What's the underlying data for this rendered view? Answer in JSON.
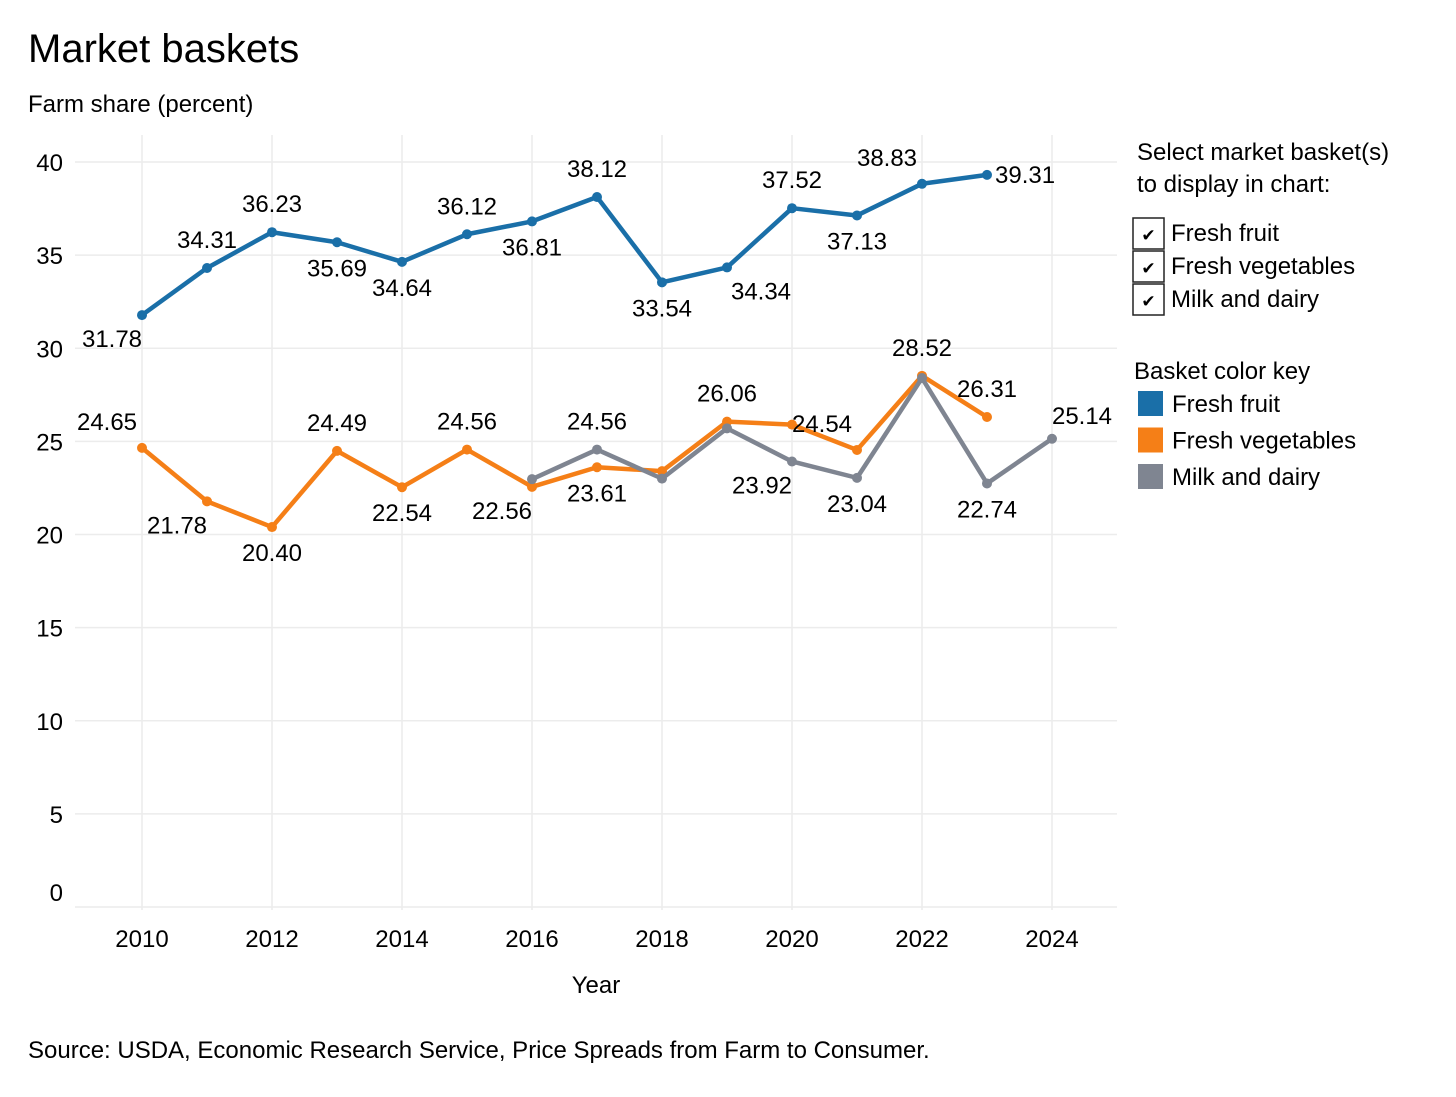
{
  "chart_data": {
    "type": "line",
    "title": "Market baskets",
    "ylabel": "Farm share (percent)",
    "xlabel": "Year",
    "ylim": [
      0,
      40
    ],
    "xlim": [
      2010,
      2024
    ],
    "yticks": [
      "0",
      "5",
      "10",
      "15",
      "20",
      "25",
      "30",
      "35",
      "40"
    ],
    "xticks": [
      "2010",
      "2012",
      "2014",
      "2016",
      "2018",
      "2020",
      "2022",
      "2024"
    ],
    "grid": true,
    "series": [
      {
        "name": "Fresh fruit",
        "color": "#1a6fa8",
        "points": [
          [
            2010,
            31.78,
            "31.78",
            "below-left"
          ],
          [
            2011,
            34.31,
            "34.31",
            "above"
          ],
          [
            2012,
            36.23,
            "36.23",
            "above"
          ],
          [
            2013,
            35.69,
            "35.69",
            "below"
          ],
          [
            2014,
            34.64,
            "34.64",
            "below"
          ],
          [
            2015,
            36.12,
            "36.12",
            "above"
          ],
          [
            2016,
            36.81,
            "36.81",
            "below"
          ],
          [
            2017,
            38.12,
            "38.12",
            "above"
          ],
          [
            2018,
            33.54,
            "33.54",
            "below"
          ],
          [
            2019,
            34.34,
            "34.34",
            "below-right"
          ],
          [
            2020,
            37.52,
            "37.52",
            "above"
          ],
          [
            2021,
            37.13,
            "37.13",
            "below"
          ],
          [
            2022,
            38.83,
            "38.83",
            "above-left"
          ],
          [
            2023,
            39.31,
            "39.31",
            "right"
          ]
        ]
      },
      {
        "name": "Fresh vegetables",
        "color": "#f57f17",
        "points": [
          [
            2010,
            24.65,
            "24.65",
            "above-left"
          ],
          [
            2011,
            21.78,
            "21.78",
            "below-left"
          ],
          [
            2012,
            20.4,
            "20.40",
            "below"
          ],
          [
            2013,
            24.49,
            "24.49",
            "above"
          ],
          [
            2014,
            22.54,
            "22.54",
            "below"
          ],
          [
            2015,
            24.56,
            "24.56",
            "above"
          ],
          [
            2016,
            22.56,
            "22.56",
            "below-left"
          ],
          [
            2017,
            23.61,
            "23.61",
            "below"
          ],
          [
            2018,
            23.4,
            "",
            ""
          ],
          [
            2019,
            26.06,
            "26.06",
            "above"
          ],
          [
            2020,
            25.9,
            "",
            ""
          ],
          [
            2021,
            24.54,
            "24.54",
            "above-left"
          ],
          [
            2022,
            28.52,
            "28.52",
            "above"
          ],
          [
            2023,
            26.31,
            "26.31",
            "above"
          ]
        ]
      },
      {
        "name": "Milk and dairy",
        "color": "#7f8591",
        "points": [
          [
            2016,
            22.97,
            "",
            ""
          ],
          [
            2017,
            24.56,
            "24.56",
            "above"
          ],
          [
            2018,
            23.0,
            "",
            ""
          ],
          [
            2019,
            25.7,
            "",
            ""
          ],
          [
            2020,
            23.92,
            "23.92",
            "below-left"
          ],
          [
            2021,
            23.04,
            "23.04",
            "below"
          ],
          [
            2022,
            28.4,
            "",
            ""
          ],
          [
            2023,
            22.74,
            "22.74",
            "below"
          ],
          [
            2024,
            25.14,
            "25.14",
            "above-right"
          ]
        ]
      }
    ]
  },
  "controls": {
    "select_title_line1": "Select market basket(s)",
    "select_title_line2": "to display in chart:",
    "checkboxes": [
      {
        "label": "Fresh fruit",
        "checked": true
      },
      {
        "label": "Fresh vegetables",
        "checked": true
      },
      {
        "label": "Milk and dairy",
        "checked": true
      }
    ],
    "check_glyph": "✔",
    "key_title": "Basket color key"
  },
  "source": "Source: USDA, Economic Research Service, Price Spreads from Farm to Consumer."
}
